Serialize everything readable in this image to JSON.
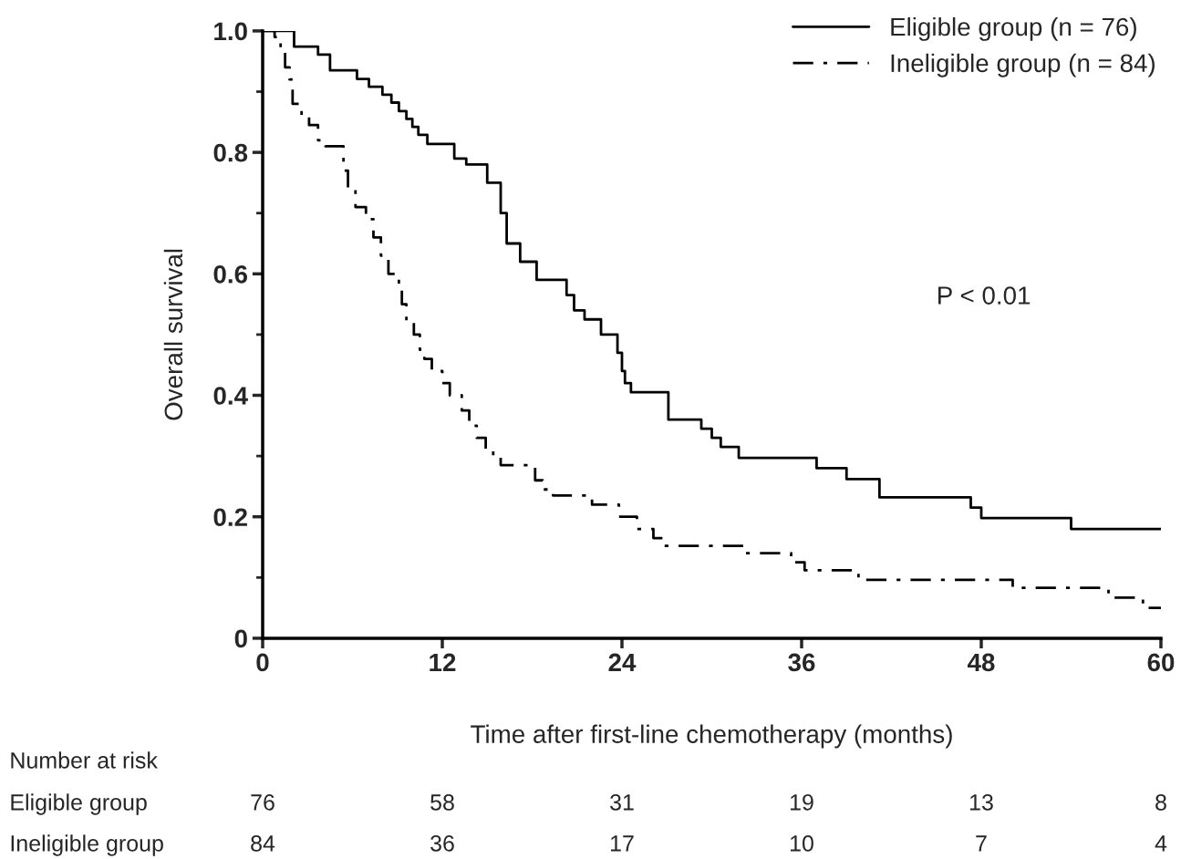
{
  "chart_data": {
    "type": "step",
    "xlabel": "Time after first-line chemotherapy (months)",
    "ylabel": "Overall survival",
    "xlim": [
      0,
      60
    ],
    "ylim": [
      0,
      1
    ],
    "xticks": [
      0,
      12,
      24,
      36,
      48,
      60
    ],
    "yticks": [
      0,
      0.2,
      0.4,
      0.6,
      0.8,
      {
        "value": 1,
        "label": "1.0"
      }
    ],
    "legend": "top right",
    "grid": false,
    "series": [
      {
        "name": "Eligible group (n = 76)",
        "color": "#000000",
        "line_style": "solid",
        "x": [
          0,
          2.1,
          3.7,
          4.5,
          6.3,
          7.1,
          8.0,
          8.6,
          9.1,
          9.6,
          10.0,
          10.4,
          11.0,
          12.8,
          13.6,
          15.0,
          15.9,
          16.3,
          17.2,
          18.3,
          20.3,
          20.8,
          21.5,
          22.6,
          23.7,
          24.0,
          24.2,
          24.6,
          27.1,
          29.3,
          30.0,
          30.6,
          31.8,
          37.0,
          39.0,
          41.2,
          47.3,
          48.0,
          54.0,
          60
        ],
        "values": [
          1.0,
          0.974,
          0.961,
          0.935,
          0.921,
          0.908,
          0.895,
          0.882,
          0.868,
          0.855,
          0.842,
          0.829,
          0.814,
          0.79,
          0.78,
          0.75,
          0.7,
          0.65,
          0.62,
          0.59,
          0.565,
          0.54,
          0.525,
          0.5,
          0.47,
          0.44,
          0.42,
          0.405,
          0.36,
          0.345,
          0.33,
          0.315,
          0.297,
          0.28,
          0.262,
          0.232,
          0.215,
          0.198,
          0.18,
          0.18
        ]
      },
      {
        "name": "Ineligible group (n = 84)",
        "color": "#000000",
        "line_style": "dashdot",
        "x": [
          0,
          0.8,
          1.2,
          1.5,
          1.8,
          2.0,
          2.6,
          3.1,
          3.7,
          4.2,
          5.4,
          5.7,
          6.2,
          6.9,
          7.4,
          7.9,
          8.4,
          9.1,
          9.3,
          9.6,
          10.1,
          10.5,
          10.8,
          11.3,
          12.0,
          12.5,
          13.3,
          13.8,
          14.3,
          14.9,
          15.4,
          15.9,
          18.2,
          18.7,
          19.4,
          22.0,
          23.8,
          25.0,
          26.1,
          26.8,
          32.2,
          35.3,
          36.2,
          39.8,
          50.1,
          56.5,
          58.8,
          60
        ],
        "values": [
          1.0,
          0.99,
          0.97,
          0.94,
          0.92,
          0.88,
          0.86,
          0.845,
          0.82,
          0.81,
          0.77,
          0.74,
          0.71,
          0.69,
          0.66,
          0.63,
          0.6,
          0.575,
          0.55,
          0.52,
          0.5,
          0.475,
          0.46,
          0.44,
          0.42,
          0.4,
          0.375,
          0.35,
          0.33,
          0.31,
          0.3,
          0.285,
          0.26,
          0.245,
          0.235,
          0.22,
          0.2,
          0.18,
          0.165,
          0.152,
          0.14,
          0.125,
          0.112,
          0.096,
          0.083,
          0.067,
          0.05,
          0.05
        ]
      }
    ],
    "annotations": [
      "P < 0.01",
      "Number at risk",
      "Eligible group",
      "76",
      "58",
      "31",
      "19",
      "13",
      "8",
      "Ineligible group",
      "84",
      "36",
      "17",
      "10",
      "7",
      "4"
    ]
  }
}
